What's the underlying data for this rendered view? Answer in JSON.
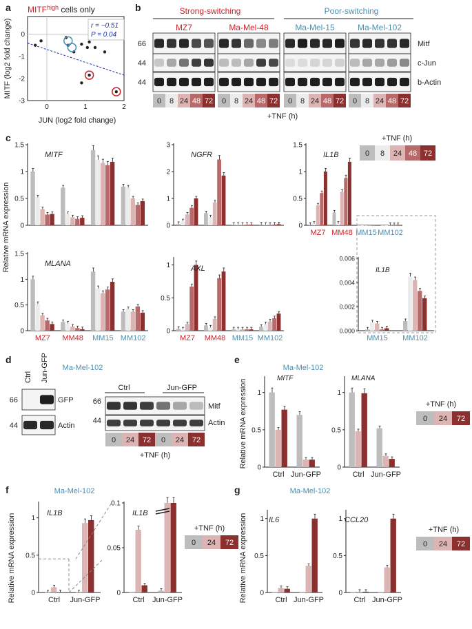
{
  "colors": {
    "t0": "#bdbdbd",
    "t8": "#ececec",
    "t24": "#dcb4b4",
    "t48": "#b86a6a",
    "t72": "#8b2f2f",
    "strong": "#d0202a",
    "poor": "#4b8fb0",
    "ink": "#222222",
    "blue": "#1a2fb0"
  },
  "panel_a": {
    "letter": "a",
    "title_main": "MITF",
    "title_sup": "high",
    "title_rest": " cells only",
    "ylabel": "MITF (log2 fold change)",
    "xlabel": "JUN (log2 fold change)",
    "r_label": "r = −0.51",
    "p_label": "P = 0.04",
    "chart_data": {
      "type": "scatter",
      "x": [
        -0.3,
        -0.15,
        0.5,
        0.55,
        0.7,
        0.9,
        1.05,
        1.1,
        1.25,
        1.5,
        0.9,
        1.1,
        1.8
      ],
      "y": [
        -0.5,
        -0.3,
        -0.15,
        -0.5,
        -0.8,
        -0.45,
        -0.6,
        -0.35,
        -0.6,
        -0.8,
        -2.2,
        -1.85,
        -2.6
      ],
      "circled_blue": [
        [
          0.55,
          -0.3
        ],
        [
          0.65,
          -0.6
        ]
      ],
      "circled_red": [
        [
          1.1,
          -1.85
        ],
        [
          1.8,
          -2.6
        ]
      ],
      "xlim": [
        -0.5,
        2
      ],
      "ylim": [
        -3,
        0.8
      ],
      "xticks": [
        "0",
        "1",
        "2"
      ],
      "yticks": [
        "0",
        "-1",
        "-2",
        "-3"
      ],
      "fit": {
        "x": [
          -0.5,
          2
        ],
        "y": [
          -0.4,
          -1.85
        ]
      }
    }
  },
  "panel_b": {
    "letter": "b",
    "group_strong": "Strong-switching",
    "group_poor": "Poor-switching",
    "cell_lines": [
      "MZ7",
      "Ma-Mel-48",
      "Ma-Mel-15",
      "Ma-Mel-102"
    ],
    "mw": [
      "66",
      "44",
      "44"
    ],
    "bands": [
      "Mitf",
      "c-Jun",
      "b-Actin"
    ],
    "timepoints": [
      "0",
      "8",
      "24",
      "48",
      "72"
    ],
    "tnf_label": "+TNF (h)"
  },
  "panel_c": {
    "letter": "c",
    "ylabel": "Relative mRNA expression",
    "legend_title": "+TNF (h)",
    "legend": [
      "0",
      "8",
      "24",
      "48",
      "72"
    ],
    "groups": [
      "MZ7",
      "MM48",
      "MM15",
      "MM102"
    ],
    "chart_data": [
      {
        "type": "bar",
        "gene": "MITF",
        "ylim": [
          0,
          1.5
        ],
        "yticks": [
          "0",
          "0.5",
          "1",
          "1.5"
        ],
        "series": [
          [
            1.0,
            0.7,
            1.4,
            0.72
          ],
          [
            0.52,
            0.21,
            1.22,
            0.7
          ],
          [
            0.3,
            0.15,
            1.16,
            0.5
          ],
          [
            0.2,
            0.12,
            1.12,
            0.38
          ],
          [
            0.21,
            0.14,
            1.18,
            0.45
          ]
        ]
      },
      {
        "type": "bar",
        "gene": "NGFR",
        "ylim": [
          0,
          3
        ],
        "yticks": [
          "0",
          "1",
          "2",
          "3"
        ],
        "series": [
          [
            0.05,
            0.45,
            0.02,
            0.03
          ],
          [
            0.15,
            0.3,
            0.02,
            0.02
          ],
          [
            0.4,
            0.85,
            0.02,
            0.02
          ],
          [
            0.65,
            2.45,
            0.02,
            0.03
          ],
          [
            1.0,
            1.85,
            0.02,
            0.04
          ]
        ]
      },
      {
        "type": "bar",
        "gene": "IL1B",
        "ylim": [
          0,
          1.5
        ],
        "yticks": [
          "0",
          "0.5",
          "1",
          "1.5"
        ],
        "series": [
          [
            0.01,
            0.24,
            0.0,
            0.0
          ],
          [
            0.03,
            0.03,
            0.0,
            0.0
          ],
          [
            0.37,
            0.62,
            0.0,
            0.005
          ],
          [
            0.6,
            0.88,
            0.0,
            0.003
          ],
          [
            1.0,
            1.18,
            0.0,
            0.003
          ]
        ]
      },
      {
        "type": "bar",
        "gene": "MLANA",
        "ylim": [
          0,
          1.5
        ],
        "yticks": [
          "0",
          "0.5",
          "1",
          "1.5"
        ],
        "series": [
          [
            1.0,
            0.17,
            1.15,
            0.37
          ],
          [
            0.52,
            0.14,
            0.82,
            0.42
          ],
          [
            0.3,
            0.08,
            0.73,
            0.37
          ],
          [
            0.2,
            0.05,
            0.8,
            0.47
          ],
          [
            0.13,
            0.03,
            0.95,
            0.35
          ]
        ]
      },
      {
        "type": "bar",
        "gene": "AXL",
        "ylim": [
          0,
          1.1
        ],
        "yticks": [
          "0",
          "0.5",
          "1"
        ],
        "series": [
          [
            0.03,
            0.08,
            0.02,
            0.06
          ],
          [
            0.02,
            0.05,
            0.02,
            0.1
          ],
          [
            0.1,
            0.18,
            0.02,
            0.14
          ],
          [
            0.67,
            0.8,
            0.02,
            0.19
          ],
          [
            1.0,
            0.9,
            0.02,
            0.26
          ]
        ]
      },
      {
        "type": "bar",
        "gene": "IL1B",
        "ylim": [
          0,
          0.006
        ],
        "yticks": [
          "0.000",
          "0.002",
          "0.004",
          "0.006"
        ],
        "groups": [
          "MM15",
          "MM102"
        ],
        "series": [
          [
            0.0001,
            0.0008
          ],
          [
            0.0007,
            0.0045
          ],
          [
            0.0006,
            0.0042
          ],
          [
            0.0001,
            0.0033
          ],
          [
            0.0002,
            0.0027
          ]
        ]
      }
    ]
  },
  "panel_d": {
    "letter": "d",
    "cell_line": "Ma-Mel-102",
    "left_lanes": [
      "Ctrl",
      "Jun-GFP"
    ],
    "left_mw": [
      "66",
      "44"
    ],
    "left_bands": [
      "GFP",
      "Actin"
    ],
    "right_groups": [
      "Ctrl",
      "Jun-GFP"
    ],
    "right_mw": [
      "66",
      "44"
    ],
    "right_bands": [
      "Mitf",
      "Actin"
    ],
    "timepoints": [
      "0",
      "24",
      "72",
      "0",
      "24",
      "72"
    ],
    "tnf_label": "+TNF (h)"
  },
  "panel_e": {
    "letter": "e",
    "cell_line": "Ma-Mel-102",
    "ylabel": "Relative mRNA expression",
    "legend_title": "+TNF (h)",
    "legend": [
      "0",
      "24",
      "72"
    ],
    "groups": [
      "Ctrl",
      "Jun-GFP"
    ],
    "chart_data": [
      {
        "type": "bar",
        "gene": "MITF",
        "ylim": [
          0,
          1.2
        ],
        "yticks": [
          "0",
          "0.5",
          "1"
        ],
        "series": [
          [
            1.0,
            0.7
          ],
          [
            0.5,
            0.1
          ],
          [
            0.77,
            0.1
          ]
        ]
      },
      {
        "type": "bar",
        "gene": "MLANA",
        "ylim": [
          0,
          1.2
        ],
        "yticks": [
          "0",
          "0.5",
          "1"
        ],
        "series": [
          [
            1.0,
            0.52
          ],
          [
            0.48,
            0.15
          ],
          [
            0.99,
            0.11
          ]
        ]
      }
    ]
  },
  "panel_f": {
    "letter": "f",
    "cell_line": "Ma-Mel-102",
    "ylabel": "Relative mRNA expression",
    "legend_title": "+TNF (h)",
    "legend": [
      "0",
      "24",
      "72"
    ],
    "groups": [
      "Ctrl",
      "Jun-GFP"
    ],
    "chart_data": [
      {
        "type": "bar",
        "gene": "IL1B",
        "ylim": [
          0,
          1.2
        ],
        "yticks": [
          "0",
          "0.5",
          "1"
        ],
        "series": [
          [
            0.002,
            0.003
          ],
          [
            0.07,
            0.93
          ],
          [
            0.005,
            0.97
          ]
        ]
      },
      {
        "type": "bar",
        "gene": "IL1B",
        "ylim": [
          0,
          0.1
        ],
        "yticks": [
          "0",
          "0.05",
          "0.1"
        ],
        "series": [
          [
            0.0,
            0.002
          ],
          [
            0.07,
            0.1
          ],
          [
            0.008,
            0.1
          ]
        ]
      }
    ]
  },
  "panel_g": {
    "letter": "g",
    "cell_line": "Ma-Mel-102",
    "ylabel": "Relative mRNA expression",
    "legend_title": "+TNF (h)",
    "legend": [
      "0",
      "24",
      "72"
    ],
    "groups": [
      "Ctrl",
      "Jun-GFP"
    ],
    "chart_data": [
      {
        "type": "bar",
        "gene": "IL6",
        "ylim": [
          0,
          1.1
        ],
        "yticks": [
          "0",
          "0.5",
          "1"
        ],
        "series": [
          [
            0.0,
            0.0
          ],
          [
            0.06,
            0.36
          ],
          [
            0.05,
            1.0
          ]
        ]
      },
      {
        "type": "bar",
        "gene": "CCL20",
        "ylim": [
          0,
          1.1
        ],
        "yticks": [
          "0",
          "0.5",
          "1"
        ],
        "series": [
          [
            0.0,
            0.0
          ],
          [
            0.01,
            0.34
          ],
          [
            0.01,
            1.0
          ]
        ]
      }
    ]
  }
}
